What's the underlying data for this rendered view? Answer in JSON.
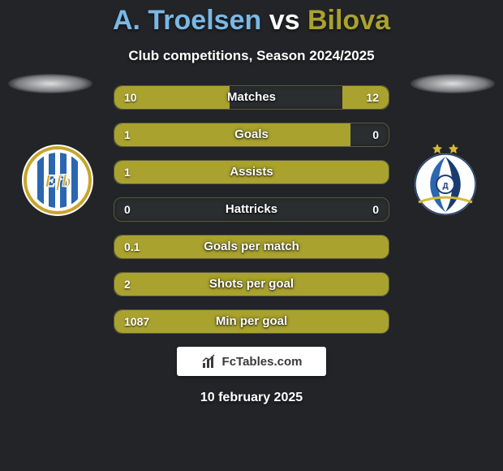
{
  "title": {
    "player1": "A. Troelsen",
    "vs": "vs",
    "player2": "Bilova",
    "player1_color": "#7ab8e6",
    "vs_color": "#ffffff",
    "player2_color": "#a9a22e"
  },
  "subtitle": "Club competitions, Season 2024/2025",
  "colors": {
    "bar_left": "#a9a22e",
    "bar_right": "#a9a22e",
    "row_bg": "#2b2e31",
    "row_border": "#5a5a3a",
    "page_bg": "#222427"
  },
  "rows": [
    {
      "label": "Matches",
      "left_val": "10",
      "right_val": "12",
      "left_pct": 42,
      "right_pct": 17
    },
    {
      "label": "Goals",
      "left_val": "1",
      "right_val": "0",
      "left_pct": 86,
      "right_pct": 0
    },
    {
      "label": "Assists",
      "left_val": "1",
      "right_val": "",
      "left_pct": 100,
      "right_pct": 0
    },
    {
      "label": "Hattricks",
      "left_val": "0",
      "right_val": "0",
      "left_pct": 0,
      "right_pct": 0
    },
    {
      "label": "Goals per match",
      "left_val": "0.1",
      "right_val": "",
      "left_pct": 100,
      "right_pct": 0
    },
    {
      "label": "Shots per goal",
      "left_val": "2",
      "right_val": "",
      "left_pct": 100,
      "right_pct": 0
    },
    {
      "label": "Min per goal",
      "left_val": "1087",
      "right_val": "",
      "left_pct": 100,
      "right_pct": 0
    }
  ],
  "branding": "FcTables.com",
  "date": "10 february 2025",
  "crest_left": {
    "bg": "#ffffff",
    "ring": "#c9a42a",
    "stripe": "#2b66b0",
    "inner_bg": "#ffffff"
  },
  "crest_right": {
    "bg": "#ffffff",
    "stripe1": "#2b66b0",
    "stripe2": "#1a3c70",
    "star": "#d8b838"
  }
}
